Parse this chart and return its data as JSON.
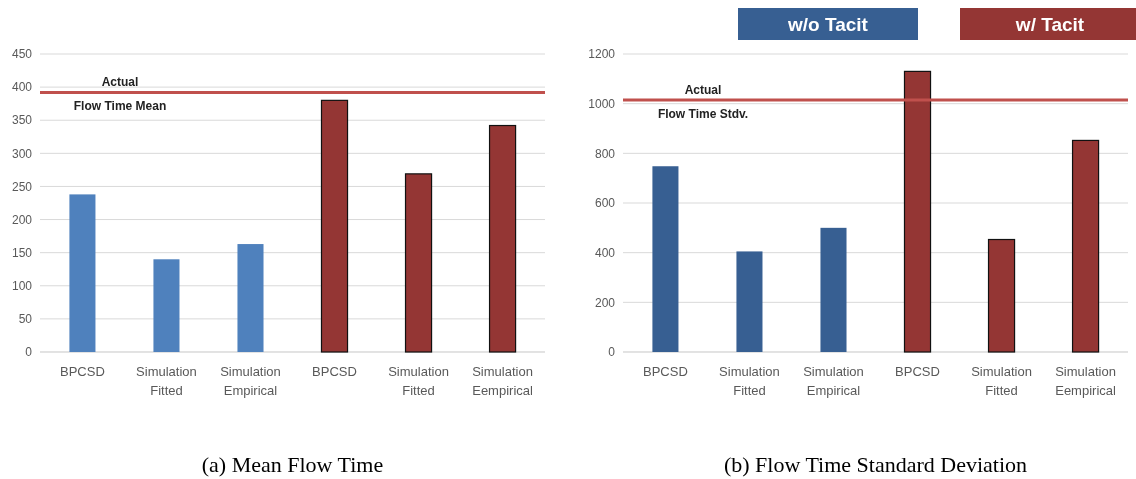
{
  "chart_data": [
    {
      "type": "bar",
      "title": "(a) Mean Flow Time",
      "categories": [
        "BPCSD",
        "Simulation Fitted",
        "Simulation Empirical",
        "BPCSD",
        "Simulation Fitted",
        "Simulation Eempirical"
      ],
      "series": [
        {
          "color": "#4f81bd",
          "values": [
            238,
            140,
            163,
            null,
            null,
            null
          ]
        },
        {
          "color": "#943634",
          "values": [
            null,
            null,
            null,
            380,
            269,
            342
          ]
        }
      ],
      "ylim": [
        0,
        450
      ],
      "yticks": [
        0,
        50,
        100,
        150,
        200,
        250,
        300,
        350,
        400,
        450
      ],
      "grid": "y",
      "legend": false,
      "ref_lines": [
        {
          "axis": "y",
          "value": 392,
          "label": "Actual\nFlow Time Mean",
          "color": "#c0504d"
        }
      ]
    },
    {
      "type": "bar",
      "title": "(b) Flow Time Standard Deviation",
      "categories": [
        "BPCSD",
        "Simulation Fitted",
        "Simulation Empirical",
        "BPCSD",
        "Simulation Fitted",
        "Simulation Eempirical"
      ],
      "series": [
        {
          "name": "w/o Tacit",
          "color": "#375f92",
          "values": [
            748,
            405,
            500,
            null,
            null,
            null
          ]
        },
        {
          "name": "w/ Tacit",
          "color": "#943634",
          "values": [
            null,
            null,
            null,
            1130,
            453,
            852
          ]
        }
      ],
      "ylim": [
        0,
        1200
      ],
      "yticks": [
        0,
        200,
        400,
        600,
        800,
        1000,
        1200
      ],
      "grid": "y",
      "legend": "top",
      "ref_lines": [
        {
          "axis": "y",
          "value": 1015,
          "label": "Actual\nFlow Time Stdv.",
          "color": "#c0504d"
        }
      ]
    }
  ]
}
